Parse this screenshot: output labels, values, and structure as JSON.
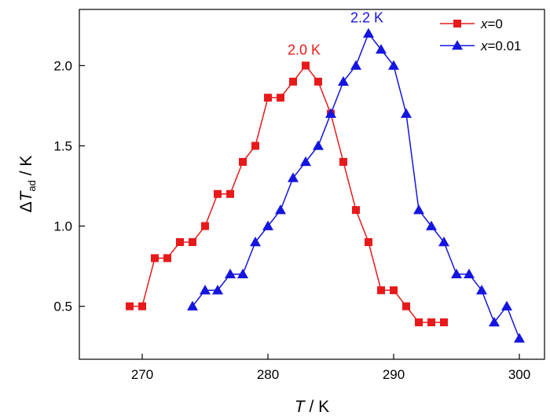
{
  "chart_data": {
    "type": "line",
    "xlabel_var": "T",
    "xlabel_unit": " / K",
    "ylabel_prefix": "Δ",
    "ylabel_var": "T",
    "ylabel_sub": "ad",
    "ylabel_unit": " / K",
    "xlim": [
      265,
      302
    ],
    "ylim": [
      0.17,
      2.35
    ],
    "xticks": [
      270,
      280,
      290,
      300
    ],
    "yticks": [
      0.5,
      1.0,
      1.5,
      2.0
    ],
    "ytick_labels": [
      "0.5",
      "1.0",
      "1.5",
      "2.0"
    ],
    "grid": false,
    "legend_position": "top-right",
    "series": [
      {
        "legend_var": "x",
        "legend_rest": "=0",
        "color": "#e8191b",
        "marker": "square",
        "points": [
          [
            269,
            0.5
          ],
          [
            270,
            0.5
          ],
          [
            271,
            0.8
          ],
          [
            272,
            0.8
          ],
          [
            273,
            0.9
          ],
          [
            274,
            0.9
          ],
          [
            275,
            1.0
          ],
          [
            276,
            1.2
          ],
          [
            277,
            1.2
          ],
          [
            278,
            1.4
          ],
          [
            279,
            1.5
          ],
          [
            280,
            1.8
          ],
          [
            281,
            1.8
          ],
          [
            282,
            1.9
          ],
          [
            283,
            2.0
          ],
          [
            284,
            1.9
          ],
          [
            285,
            1.7
          ],
          [
            286,
            1.4
          ],
          [
            287,
            1.1
          ],
          [
            288,
            0.9
          ],
          [
            289,
            0.6
          ],
          [
            290,
            0.6
          ],
          [
            291,
            0.5
          ],
          [
            292,
            0.4
          ],
          [
            293,
            0.4
          ],
          [
            294,
            0.4
          ]
        ]
      },
      {
        "legend_var": "x",
        "legend_rest": "=0.01",
        "color": "#1515e0",
        "marker": "triangle",
        "points": [
          [
            274,
            0.5
          ],
          [
            275,
            0.6
          ],
          [
            276,
            0.6
          ],
          [
            277,
            0.7
          ],
          [
            278,
            0.7
          ],
          [
            279,
            0.9
          ],
          [
            280,
            1.0
          ],
          [
            281,
            1.1
          ],
          [
            282,
            1.3
          ],
          [
            283,
            1.4
          ],
          [
            284,
            1.5
          ],
          [
            285,
            1.7
          ],
          [
            286,
            1.9
          ],
          [
            287,
            2.0
          ],
          [
            288,
            2.2
          ],
          [
            289,
            2.1
          ],
          [
            290,
            2.0
          ],
          [
            291,
            1.7
          ],
          [
            292,
            1.1
          ],
          [
            293,
            1.0
          ],
          [
            294,
            0.9
          ],
          [
            295,
            0.7
          ],
          [
            296,
            0.7
          ],
          [
            297,
            0.6
          ],
          [
            298,
            0.4
          ],
          [
            299,
            0.5
          ],
          [
            300,
            0.3
          ]
        ]
      }
    ],
    "annotations": [
      {
        "text": "2.0 K",
        "x": 283,
        "y": 2.0,
        "color": "#e8191b"
      },
      {
        "text": "2.2 K",
        "x": 288,
        "y": 2.2,
        "color": "#1515e0"
      }
    ]
  }
}
